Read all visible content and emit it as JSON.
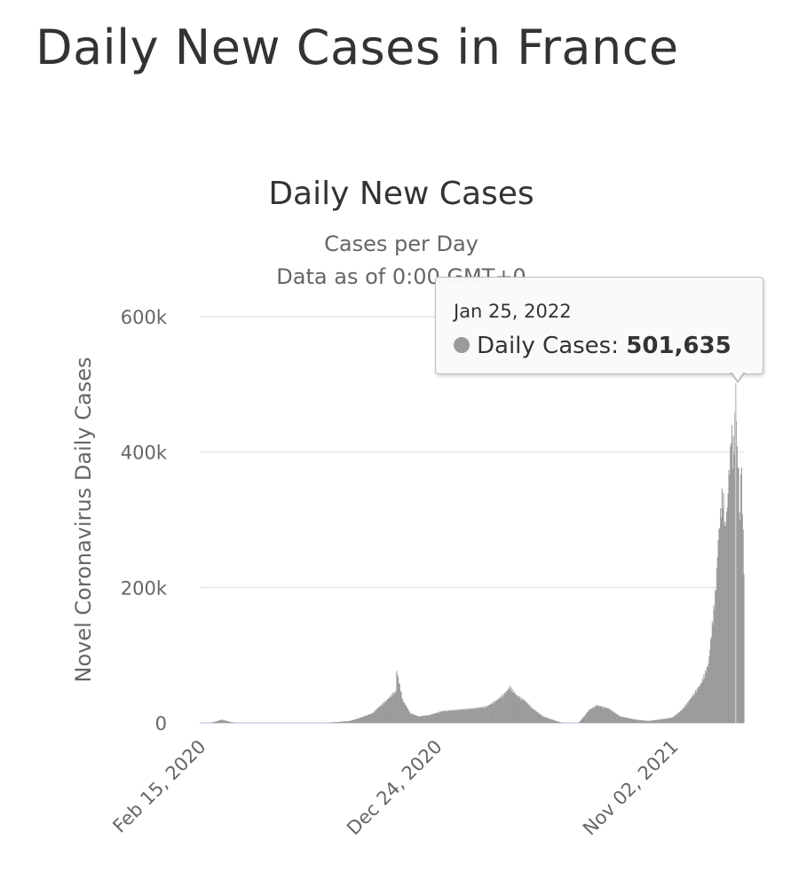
{
  "page": {
    "heading": "Daily New Cases in France"
  },
  "tooltip": {
    "date": "Jan 25, 2022",
    "series_label": "Daily Cases:",
    "value": "501,635"
  },
  "colors": {
    "bar": "#9a9a9a",
    "grid": "#e6e6e6",
    "text": "#333333",
    "muted_text": "#666666"
  },
  "chart_data": {
    "type": "bar",
    "title": "Daily New Cases",
    "subtitle_lines": [
      "Cases per Day",
      "Data as of 0:00 GMT+0"
    ],
    "xlabel": "",
    "ylabel": "Novel Coronavirus Daily Cases",
    "ylim": [
      0,
      600000
    ],
    "y_ticks": [
      0,
      200000,
      400000,
      600000
    ],
    "y_tick_labels": [
      "0",
      "200k",
      "400k",
      "600k"
    ],
    "x_range": [
      "2020-02-15",
      "2022-02-05"
    ],
    "x_tick_labels": [
      {
        "date": "2020-02-15",
        "label": "Feb 15, 2020"
      },
      {
        "date": "2020-12-24",
        "label": "Dec 24, 2020"
      },
      {
        "date": "2021-11-02",
        "label": "Nov 02, 2021"
      }
    ],
    "grid": true,
    "legend": "none",
    "highlight": {
      "date": "2022-01-25",
      "value": 501635
    },
    "series": [
      {
        "dates": [
          "2020-02-15",
          "2020-03-01",
          "2020-03-15",
          "2020-04-01",
          "2020-05-01",
          "2020-06-01",
          "2020-07-01",
          "2020-08-01",
          "2020-09-01",
          "2020-09-15",
          "2020-10-01",
          "2020-10-10",
          "2020-10-20",
          "2020-10-28",
          "2020-11-01",
          "2020-11-02",
          "2020-11-10",
          "2020-11-20",
          "2020-12-01",
          "2020-12-15",
          "2021-01-01",
          "2021-01-20",
          "2021-02-10",
          "2021-03-01",
          "2021-03-15",
          "2021-03-25",
          "2021-04-01",
          "2021-04-10",
          "2021-04-20",
          "2021-05-01",
          "2021-05-15",
          "2021-06-01",
          "2021-06-09",
          "2021-07-01",
          "2021-07-15",
          "2021-07-25",
          "2021-08-10",
          "2021-08-25",
          "2021-09-15",
          "2021-10-01",
          "2021-10-15",
          "2021-11-02",
          "2021-11-15",
          "2021-11-25",
          "2021-12-01",
          "2021-12-10",
          "2021-12-20",
          "2021-12-25",
          "2021-12-30",
          "2022-01-02",
          "2022-01-05",
          "2022-01-08",
          "2022-01-11",
          "2022-01-14",
          "2022-01-16",
          "2022-01-18",
          "2022-01-19",
          "2022-01-21",
          "2022-01-23",
          "2022-01-25",
          "2022-01-27",
          "2022-01-29",
          "2022-01-31",
          "2022-02-01",
          "2022-02-03",
          "2022-02-05"
        ],
        "values": [
          0,
          0,
          5000,
          0,
          0,
          0,
          0,
          0,
          3000,
          8000,
          15000,
          25000,
          35000,
          45000,
          48000,
          80000,
          35000,
          15000,
          10000,
          12000,
          18000,
          20000,
          22000,
          25000,
          35000,
          45000,
          55000,
          42000,
          35000,
          22000,
          10000,
          3000,
          0,
          0,
          20000,
          27000,
          22000,
          10000,
          5000,
          3000,
          5000,
          8000,
          20000,
          35000,
          45000,
          60000,
          90000,
          150000,
          210000,
          280000,
          320000,
          360000,
          300000,
          330000,
          380000,
          410000,
          460000,
          420000,
          430000,
          501635,
          420000,
          380000,
          300000,
          415000,
          340000,
          235000
        ]
      }
    ]
  }
}
